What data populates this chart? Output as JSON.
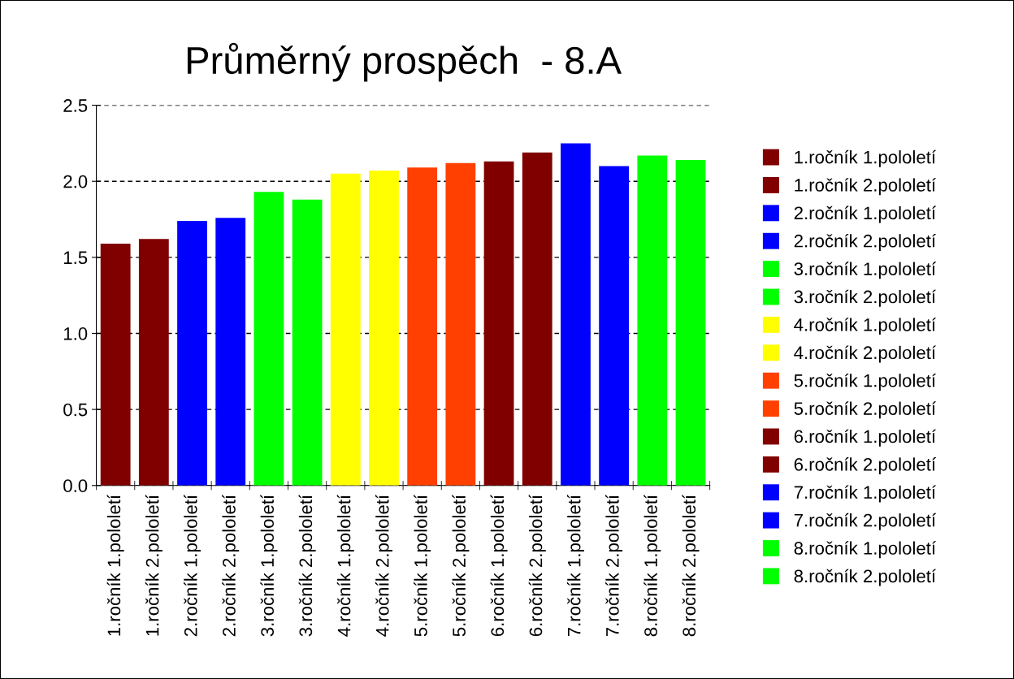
{
  "chart_data": {
    "type": "bar",
    "title": "Průměrný prospěch  - 8.A",
    "categories": [
      "1.ročník 1.pololetí",
      "1.ročník 2.pololetí",
      "2.ročník 1.pololetí",
      "2.ročník 2.pololetí",
      "3.ročník 1.pololetí",
      "3.ročník 2.pololetí",
      "4.ročník 1.pololetí",
      "4.ročník 2.pololetí",
      "5.ročník 1.pololetí",
      "5.ročník 2.pololetí",
      "6.ročník 1.pololetí",
      "6.ročník 2.pololetí",
      "7.ročník 1.pololetí",
      "7.ročník 2.pololetí",
      "8.ročník 1.pololetí",
      "8.ročník 2.pololetí"
    ],
    "series": [
      {
        "name": "1.ročník 1.pololetí",
        "color": "#800000",
        "values": [
          1.59,
          null,
          null,
          null,
          null,
          null,
          null,
          null,
          null,
          null,
          null,
          null,
          null,
          null,
          null,
          null
        ]
      },
      {
        "name": "1.ročník 2.pololetí",
        "color": "#800000",
        "values": [
          null,
          1.62,
          null,
          null,
          null,
          null,
          null,
          null,
          null,
          null,
          null,
          null,
          null,
          null,
          null,
          null
        ]
      },
      {
        "name": "2.ročník 1.pololetí",
        "color": "#0000ff",
        "values": [
          null,
          null,
          1.74,
          null,
          null,
          null,
          null,
          null,
          null,
          null,
          null,
          null,
          null,
          null,
          null,
          null
        ]
      },
      {
        "name": "2.ročník 2.pololetí",
        "color": "#0000ff",
        "values": [
          null,
          null,
          null,
          1.76,
          null,
          null,
          null,
          null,
          null,
          null,
          null,
          null,
          null,
          null,
          null,
          null
        ]
      },
      {
        "name": "3.ročník 1.pololetí",
        "color": "#00ff00",
        "values": [
          null,
          null,
          null,
          null,
          1.93,
          null,
          null,
          null,
          null,
          null,
          null,
          null,
          null,
          null,
          null,
          null
        ]
      },
      {
        "name": "3.ročník 2.pololetí",
        "color": "#00ff00",
        "values": [
          null,
          null,
          null,
          null,
          null,
          1.88,
          null,
          null,
          null,
          null,
          null,
          null,
          null,
          null,
          null,
          null
        ]
      },
      {
        "name": "4.ročník 1.pololetí",
        "color": "#ffff00",
        "values": [
          null,
          null,
          null,
          null,
          null,
          null,
          2.05,
          null,
          null,
          null,
          null,
          null,
          null,
          null,
          null,
          null
        ]
      },
      {
        "name": "4.ročník 2.pololetí",
        "color": "#ffff00",
        "values": [
          null,
          null,
          null,
          null,
          null,
          null,
          null,
          2.07,
          null,
          null,
          null,
          null,
          null,
          null,
          null,
          null
        ]
      },
      {
        "name": "5.ročník 1.pololetí",
        "color": "#ff4000",
        "values": [
          null,
          null,
          null,
          null,
          null,
          null,
          null,
          null,
          2.09,
          null,
          null,
          null,
          null,
          null,
          null,
          null
        ]
      },
      {
        "name": "5.ročník 2.pololetí",
        "color": "#ff4000",
        "values": [
          null,
          null,
          null,
          null,
          null,
          null,
          null,
          null,
          null,
          2.12,
          null,
          null,
          null,
          null,
          null,
          null
        ]
      },
      {
        "name": "6.ročník 1.pololetí",
        "color": "#800000",
        "values": [
          null,
          null,
          null,
          null,
          null,
          null,
          null,
          null,
          null,
          null,
          2.13,
          null,
          null,
          null,
          null,
          null
        ]
      },
      {
        "name": "6.ročník 2.pololetí",
        "color": "#800000",
        "values": [
          null,
          null,
          null,
          null,
          null,
          null,
          null,
          null,
          null,
          null,
          null,
          2.19,
          null,
          null,
          null,
          null
        ]
      },
      {
        "name": "7.ročník 1.pololetí",
        "color": "#0000ff",
        "values": [
          null,
          null,
          null,
          null,
          null,
          null,
          null,
          null,
          null,
          null,
          null,
          null,
          2.25,
          null,
          null,
          null
        ]
      },
      {
        "name": "7.ročník 2.pololetí",
        "color": "#0000ff",
        "values": [
          null,
          null,
          null,
          null,
          null,
          null,
          null,
          null,
          null,
          null,
          null,
          null,
          null,
          2.1,
          null,
          null
        ]
      },
      {
        "name": "8.ročník 1.pololetí",
        "color": "#00ff00",
        "values": [
          null,
          null,
          null,
          null,
          null,
          null,
          null,
          null,
          null,
          null,
          null,
          null,
          null,
          null,
          2.17,
          null
        ]
      },
      {
        "name": "8.ročník 2.pololetí",
        "color": "#00ff00",
        "values": [
          null,
          null,
          null,
          null,
          null,
          null,
          null,
          null,
          null,
          null,
          null,
          null,
          null,
          null,
          null,
          2.14
        ]
      }
    ],
    "ylim": [
      0,
      2.5
    ],
    "yticks": [
      {
        "value": 0,
        "label": "0.0"
      },
      {
        "value": 0.5,
        "label": "0.5"
      },
      {
        "value": 1,
        "label": "1.0"
      },
      {
        "value": 1.5,
        "label": "1.5"
      },
      {
        "value": 2,
        "label": "2.0"
      },
      {
        "value": 2.5,
        "label": "2.5"
      }
    ],
    "grid": "y",
    "legend": "right"
  }
}
